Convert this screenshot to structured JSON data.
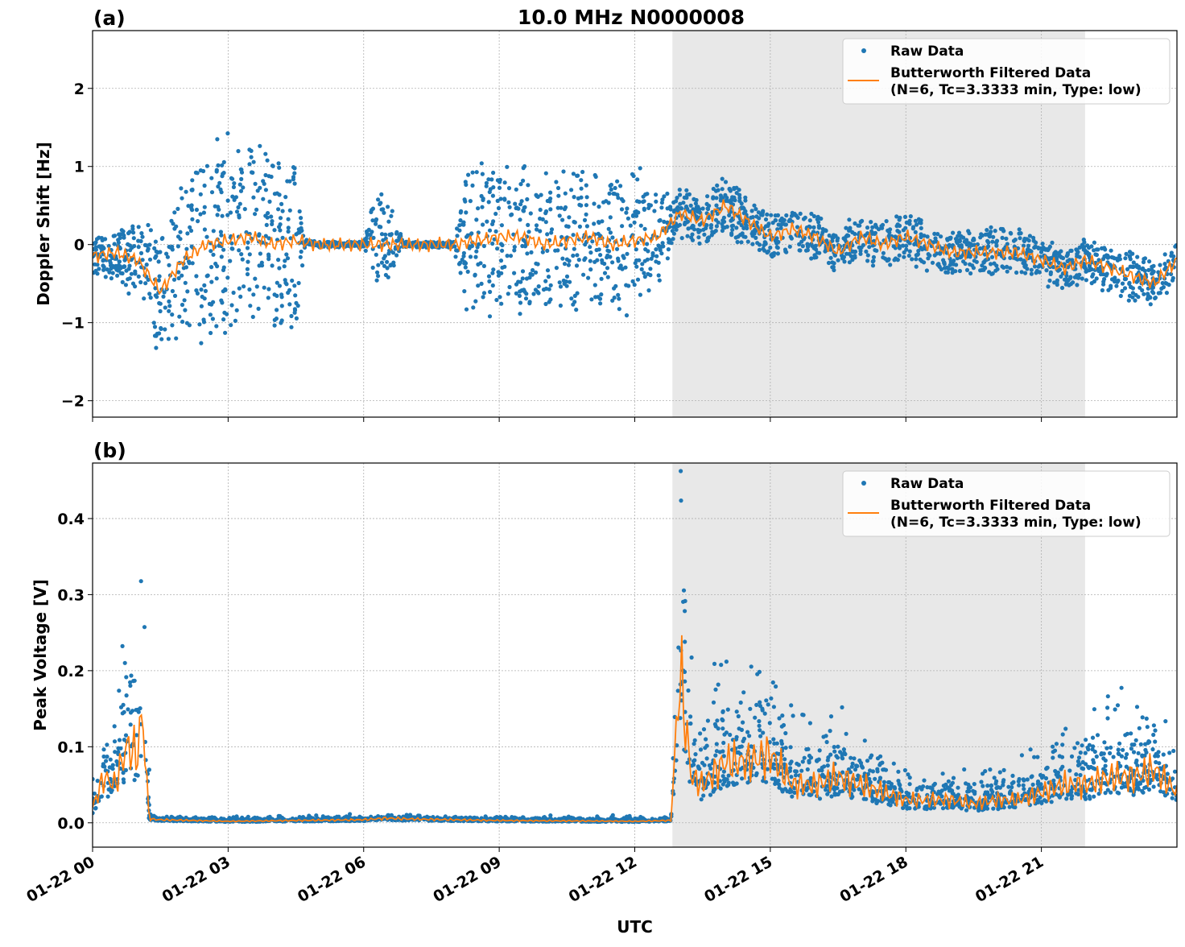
{
  "title": "10.0 MHz N0000008",
  "colors": {
    "raw": "#1f77b4",
    "filtered": "#ff7f0e",
    "shade": "#e8e8e8",
    "grid": "#b0b0b0"
  },
  "chart_data": [
    {
      "type": "scatter",
      "panel_label": "(a)",
      "ylabel": "Doppler Shift [Hz]",
      "xlabel": "",
      "xlim_hours_utc": [
        0,
        24
      ],
      "ylim": [
        -2.21,
        2.74
      ],
      "yticks": [
        -2,
        -1,
        0,
        1,
        2
      ],
      "ytick_labels": [
        "−2",
        "−1",
        "0",
        "1",
        "2"
      ],
      "grid": true,
      "legend_placement": "top-right",
      "shaded_region_utc": [
        "01-22 12:50",
        "01-22 21:58"
      ],
      "series": [
        {
          "name": "Raw Data",
          "kind": "points",
          "hours": [
            0,
            0.5,
            1,
            1.5,
            2,
            2.5,
            3,
            3.5,
            4,
            4.5,
            4.7,
            5,
            6,
            6.3,
            6.9,
            7.5,
            8,
            8.3,
            9,
            10,
            11,
            12,
            12.8,
            13,
            14,
            15,
            16,
            17,
            18,
            19,
            20,
            21,
            22,
            23,
            24
          ],
          "spread_hz": [
            0.3,
            0.3,
            0.6,
            0.8,
            1.1,
            1.3,
            1.3,
            1.3,
            1.2,
            1.2,
            0.04,
            0.04,
            0.04,
            0.8,
            0.04,
            0.04,
            0.04,
            1.0,
            1.0,
            1.0,
            1.0,
            1.0,
            0.35,
            0.3,
            0.4,
            0.3,
            0.3,
            0.3,
            0.35,
            0.3,
            0.3,
            0.3,
            0.3,
            0.35,
            0.25
          ]
        },
        {
          "name": "Butterworth Filtered Data\n(N=6, Tc=3.3333 min, Type: low)",
          "kind": "line",
          "hours": [
            0,
            0.5,
            1,
            1.5,
            2,
            2.5,
            3,
            3.5,
            4,
            4.5,
            5,
            5.5,
            6,
            6.5,
            7,
            7.5,
            8,
            8.5,
            9,
            9.5,
            10,
            10.5,
            11,
            11.5,
            12,
            12.5,
            13,
            13.5,
            14,
            14.5,
            15,
            15.5,
            16,
            16.5,
            17,
            17.5,
            18,
            18.5,
            19,
            19.5,
            20,
            20.5,
            21,
            21.5,
            22,
            22.5,
            23,
            23.5,
            24
          ],
          "values_hz": [
            -0.15,
            -0.1,
            -0.2,
            -0.6,
            -0.2,
            0,
            0.05,
            0.1,
            0,
            0.05,
            0,
            0,
            0,
            0,
            0,
            0,
            0,
            0.05,
            0.1,
            0.1,
            0,
            0.05,
            0.1,
            0,
            0.05,
            0.1,
            0.4,
            0.3,
            0.5,
            0.3,
            0.1,
            0.2,
            0.1,
            -0.1,
            0.1,
            0,
            0.1,
            0,
            -0.1,
            -0.1,
            -0.1,
            -0.1,
            -0.2,
            -0.3,
            -0.2,
            -0.3,
            -0.4,
            -0.5,
            -0.2
          ]
        }
      ],
      "legend": [
        "Raw Data",
        "Butterworth Filtered Data",
        "(N=6, Tc=3.3333 min, Type: low)"
      ]
    },
    {
      "type": "scatter",
      "panel_label": "(b)",
      "ylabel": "Peak Voltage [V]",
      "xlabel": "UTC",
      "xlim_hours_utc": [
        0,
        24
      ],
      "ylim": [
        -0.032,
        0.473
      ],
      "yticks": [
        0.0,
        0.1,
        0.2,
        0.3,
        0.4
      ],
      "ytick_labels": [
        "0.0",
        "0.1",
        "0.2",
        "0.3",
        "0.4"
      ],
      "xtick_labels": [
        "01-22 00",
        "01-22 03",
        "01-22 06",
        "01-22 09",
        "01-22 12",
        "01-22 15",
        "01-22 18",
        "01-22 21"
      ],
      "xtick_hours": [
        0,
        3,
        6,
        9,
        12,
        15,
        18,
        21
      ],
      "grid": true,
      "legend_placement": "top-right",
      "shaded_region_utc": [
        "01-22 12:50",
        "01-22 21:58"
      ],
      "series": [
        {
          "name": "Raw Data",
          "kind": "points",
          "hours": [
            0,
            0.5,
            0.7,
            1,
            1.15,
            1.3,
            12.8,
            13,
            13.3,
            14,
            14.5,
            15,
            16,
            17,
            18,
            19,
            20,
            21,
            22,
            23,
            24
          ],
          "spread_v": [
            0.04,
            0.08,
            0.2,
            0.15,
            0.2,
            0.006,
            0.006,
            0.3,
            0.12,
            0.12,
            0.12,
            0.14,
            0.09,
            0.07,
            0.05,
            0.04,
            0.05,
            0.07,
            0.1,
            0.12,
            0.08
          ]
        },
        {
          "name": "Butterworth Filtered Data\n(N=6, Tc=3.3333 min, Type: low)",
          "kind": "line",
          "hours": [
            0,
            0.25,
            0.5,
            0.75,
            1,
            1.1,
            1.25,
            1.5,
            3,
            6,
            6.5,
            7,
            9,
            12,
            12.8,
            13,
            13.25,
            13.5,
            14,
            14.5,
            15,
            15.5,
            16,
            16.5,
            17,
            17.5,
            18,
            18.5,
            19,
            19.5,
            20,
            20.5,
            21,
            21.5,
            22,
            22.5,
            23,
            23.5,
            24
          ],
          "values_v": [
            0.02,
            0.06,
            0.05,
            0.1,
            0.09,
            0.15,
            0.005,
            0.004,
            0.002,
            0.004,
            0.006,
            0.005,
            0.003,
            0.002,
            0.003,
            0.2,
            0.06,
            0.05,
            0.08,
            0.08,
            0.09,
            0.05,
            0.05,
            0.06,
            0.05,
            0.04,
            0.03,
            0.03,
            0.03,
            0.025,
            0.03,
            0.03,
            0.04,
            0.05,
            0.05,
            0.06,
            0.06,
            0.07,
            0.04
          ]
        }
      ],
      "legend": [
        "Raw Data",
        "Butterworth Filtered Data",
        "(N=6, Tc=3.3333 min, Type: low)"
      ]
    }
  ]
}
